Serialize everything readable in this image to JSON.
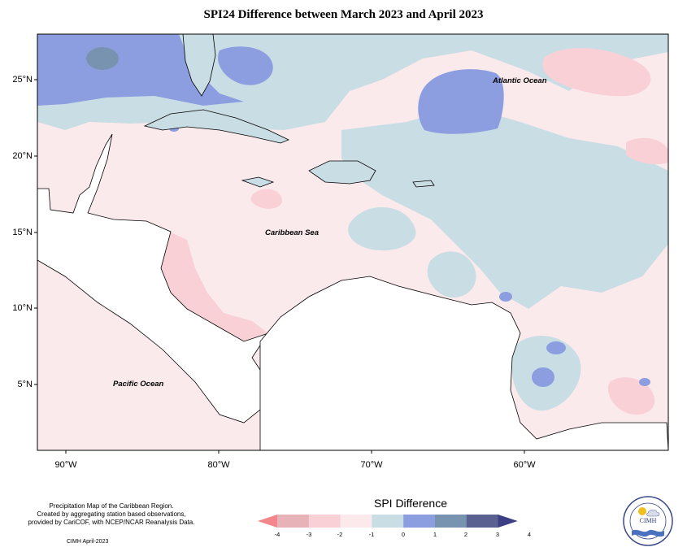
{
  "title": "SPI24 Difference between March 2023 and April 2023",
  "axes": {
    "y_labels": [
      "25°N",
      "20°N",
      "15°N",
      "10°N",
      "5°N"
    ],
    "x_labels": [
      "90°W",
      "80°W",
      "70°W",
      "60°W"
    ]
  },
  "map_labels": {
    "atlantic": "Atlantic Ocean",
    "caribbean": "Caribbean Sea",
    "pacific": "Pacific Ocean"
  },
  "credits": {
    "line1": "Precipitation Map of the Caribbean Region.",
    "line2": "Created by aggregating station based observations,",
    "line3": "provided by CariCOF, with NCEP/NCAR Reanalysis Data.",
    "issued": "CIMH April-2023"
  },
  "legend": {
    "title": "SPI Difference",
    "ticks": [
      "-4",
      "-3",
      "-2",
      "-1",
      "0",
      "1",
      "2",
      "3",
      "4"
    ],
    "colors": [
      "#f4858a",
      "#e8b3b8",
      "#f8d0d6",
      "#fbe9ec",
      "#c9dde4",
      "#8c9ee0",
      "#7893b0",
      "#5a6090",
      "#3d3f84"
    ]
  },
  "logo": {
    "text": "CIMH"
  }
}
